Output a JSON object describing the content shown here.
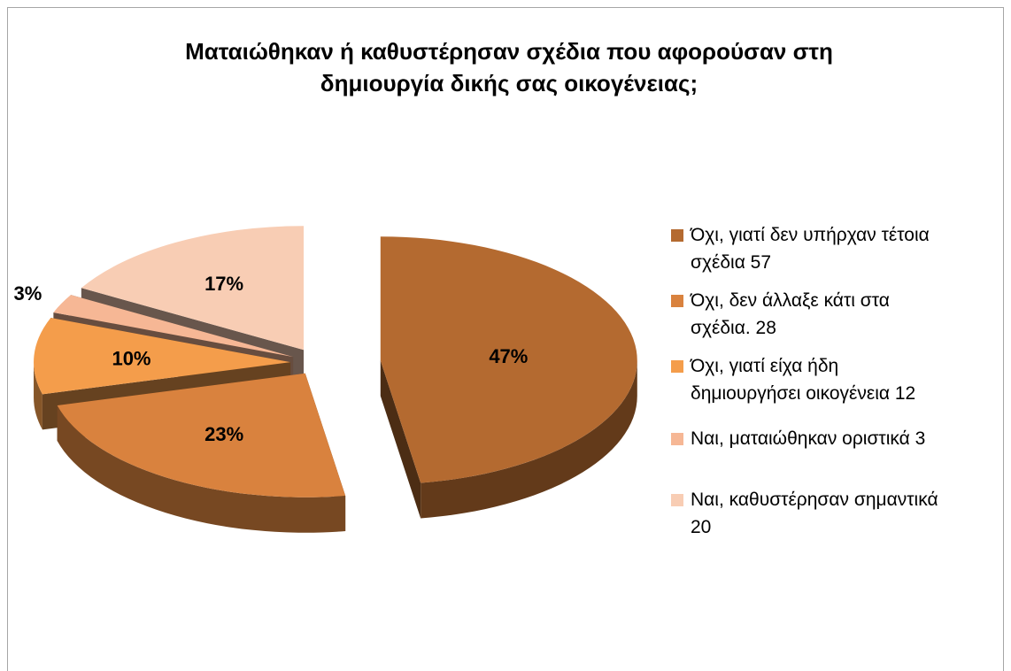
{
  "chart_data": {
    "type": "pie",
    "style": "3d-exploded",
    "title_lines": [
      "Ματαιώθηκαν ή καθυστέρησαν σχέδια που αφορούσαν στη",
      "δημιουργία δικής σας οικογένειας;"
    ],
    "legend_position": "right",
    "slices": [
      {
        "label_lines": [
          "Όχι, γιατί δεν υπήρχαν τέτοια",
          "σχέδια 57"
        ],
        "value": 57,
        "percent_label": "47%",
        "color": "#b46a30"
      },
      {
        "label_lines": [
          "Όχι, δεν άλλαξε κάτι στα",
          "σχέδια. 28"
        ],
        "value": 28,
        "percent_label": "23%",
        "color": "#d9823e"
      },
      {
        "label_lines": [
          "Όχι, γιατί είχα ήδη",
          "δημιουργήσει οικογένεια 12"
        ],
        "value": 12,
        "percent_label": "10%",
        "color": "#f49d4b"
      },
      {
        "label_lines": [
          "Ναι, ματαιώθηκαν οριστικά 3"
        ],
        "value": 3,
        "percent_label": "3%",
        "color": "#f6b795"
      },
      {
        "label_lines": [
          "Ναι, καθυστέρησαν  σημαντικά",
          "20"
        ],
        "value": 20,
        "percent_label": "17%",
        "color": "#f8cdb4"
      }
    ]
  }
}
